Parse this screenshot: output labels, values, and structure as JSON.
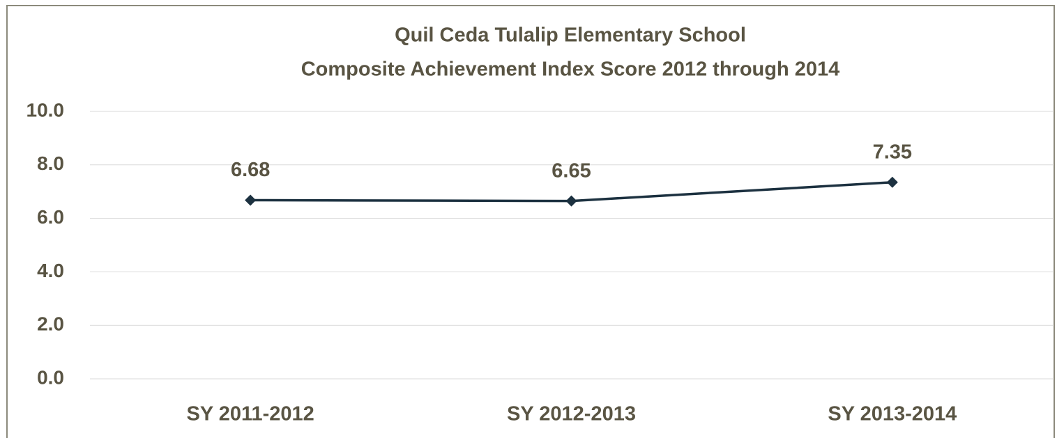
{
  "chart_data": {
    "type": "line",
    "title": [
      "Quil Ceda Tulalip Elementary School",
      "Composite Achievement Index Score 2012 through 2014"
    ],
    "categories": [
      "SY 2011-2012",
      "SY 2012-2013",
      "SY 2013-2014"
    ],
    "series": [
      {
        "name": "Composite Achievement Index Score",
        "color": "#1c3140",
        "values": [
          6.68,
          6.65,
          7.35
        ]
      }
    ],
    "ylim": [
      0,
      10
    ],
    "yticks": [
      {
        "value": 0,
        "label": "0.0"
      },
      {
        "value": 2,
        "label": "2.0"
      },
      {
        "value": 4,
        "label": "4.0"
      },
      {
        "value": 6,
        "label": "6.0"
      },
      {
        "value": 8,
        "label": "8.0"
      },
      {
        "value": 10,
        "label": "10.0"
      }
    ],
    "grid": true
  }
}
